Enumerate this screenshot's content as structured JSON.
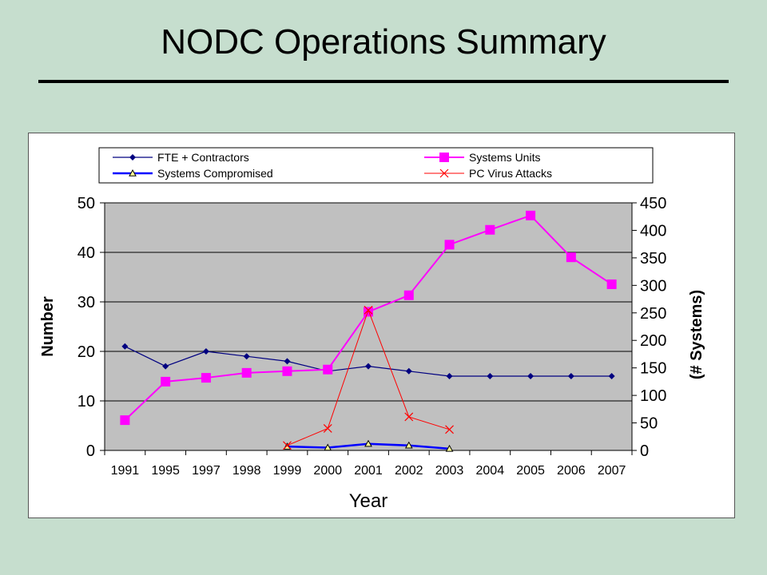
{
  "slide": {
    "title": "NODC Operations Summary"
  },
  "colors": {
    "background": "#c6dece",
    "plot_area": "#c0c0c0",
    "fte": "#000080",
    "systems_units": "#ff00ff",
    "compromised": "#0000ff",
    "virus": "#ff0000"
  },
  "chart_data": {
    "type": "line",
    "title": "",
    "xlabel": "Year",
    "ylabel": "Number",
    "y2label": "(# Systems)",
    "categories": [
      "1991",
      "1995",
      "1997",
      "1998",
      "1999",
      "2000",
      "2001",
      "2002",
      "2003",
      "2004",
      "2005",
      "2006",
      "2007"
    ],
    "ylim": [
      0,
      50
    ],
    "y_ticks": [
      0,
      10,
      20,
      30,
      40,
      50
    ],
    "y2lim": [
      0,
      450
    ],
    "y2_ticks": [
      0,
      50,
      100,
      150,
      200,
      250,
      300,
      350,
      400,
      450
    ],
    "grid": true,
    "legend_position": "top",
    "series": [
      {
        "name": "FTE + Contractors",
        "axis": "left",
        "marker": "diamond",
        "color": "#000080",
        "values": [
          21,
          17,
          20,
          19,
          18,
          16,
          17,
          16,
          15,
          15,
          15,
          15,
          15
        ]
      },
      {
        "name": "Systems Units",
        "axis": "right",
        "marker": "square",
        "color": "#ff00ff",
        "values": [
          55,
          125,
          132,
          141,
          144,
          147,
          252,
          282,
          374,
          401,
          427,
          351,
          302
        ]
      },
      {
        "name": "Systems Compromised",
        "axis": "right",
        "marker": "triangle",
        "color": "#0000ff",
        "values": [
          null,
          null,
          null,
          null,
          7,
          5,
          12,
          9,
          3,
          null,
          null,
          null,
          null
        ]
      },
      {
        "name": "PC Virus Attacks",
        "axis": "right",
        "marker": "x",
        "color": "#ff0000",
        "values": [
          null,
          null,
          null,
          null,
          9,
          40,
          255,
          61,
          38,
          null,
          null,
          null,
          null
        ]
      }
    ]
  }
}
